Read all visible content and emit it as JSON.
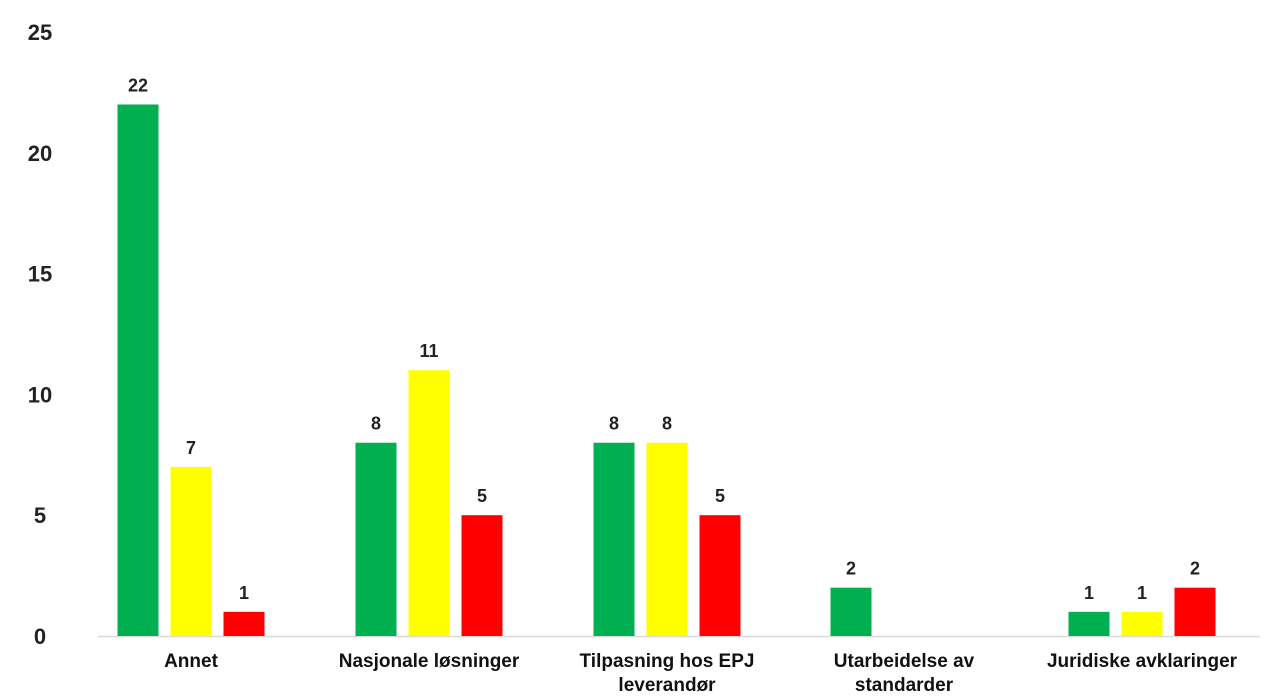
{
  "chart_data": {
    "type": "bar",
    "categories": [
      [
        "Annet"
      ],
      [
        "Nasjonale løsninger"
      ],
      [
        "Tilpasning hos EPJ",
        "leverandør"
      ],
      [
        "Utarbeidelse av",
        "standarder"
      ],
      [
        "Juridiske avklaringer"
      ]
    ],
    "series": [
      {
        "values": [
          22,
          8,
          8,
          2,
          1
        ]
      },
      {
        "values": [
          7,
          11,
          8,
          null,
          1
        ]
      },
      {
        "values": [
          1,
          5,
          5,
          null,
          2
        ]
      }
    ],
    "colors": [
      "#00b050",
      "#ffff00",
      "#ff0000"
    ],
    "yticks": [
      "0",
      "5",
      "10",
      "15",
      "20",
      "25"
    ],
    "ylim": [
      0,
      25
    ],
    "grid": false,
    "legend": "none"
  }
}
